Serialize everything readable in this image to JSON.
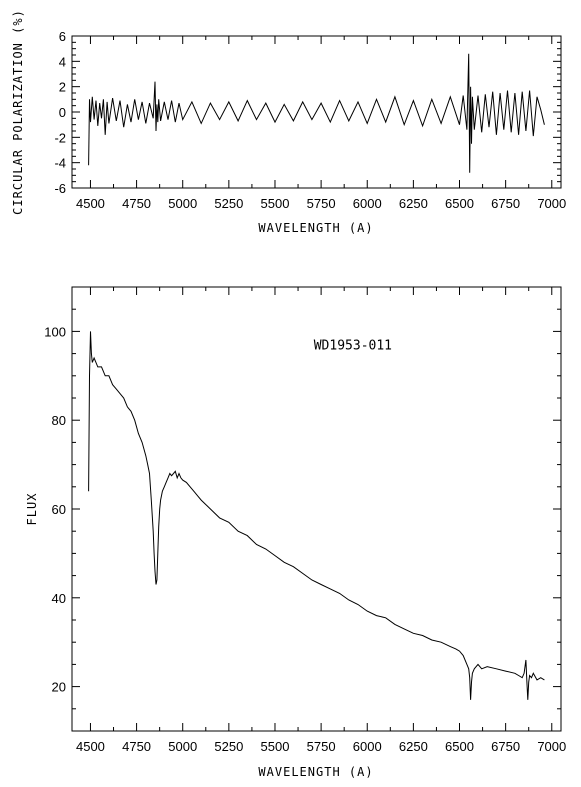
{
  "chart_data": [
    {
      "type": "line",
      "title": "",
      "xlabel": "WAVELENGTH (A)",
      "ylabel": "CIRCULAR POLARIZATION (%)",
      "xlim": [
        4400,
        7050
      ],
      "ylim": [
        -6,
        6
      ],
      "xticks": [
        4500,
        4750,
        5000,
        5250,
        5500,
        5750,
        6000,
        6250,
        6500,
        6750,
        7000
      ],
      "xtick_labels": [
        "4500",
        "4750",
        "5000",
        "5250",
        "5500",
        "5750",
        "6000",
        "6250",
        "6500",
        "6750",
        "7000"
      ],
      "yticks": [
        -6,
        -4,
        -2,
        0,
        2,
        4,
        6
      ],
      "ytick_labels": [
        "-6",
        "-4",
        "-2",
        "0",
        "2",
        "4",
        "6"
      ],
      "grid": false,
      "series": [
        {
          "x": [
            4490,
            4495,
            4500,
            4510,
            4520,
            4530,
            4540,
            4550,
            4560,
            4570,
            4580,
            4590,
            4600,
            4620,
            4640,
            4660,
            4680,
            4700,
            4720,
            4740,
            4760,
            4780,
            4800,
            4820,
            4840,
            4850,
            4855,
            4860,
            4865,
            4870,
            4880,
            4900,
            4920,
            4940,
            4960,
            4980,
            5000,
            5050,
            5100,
            5150,
            5200,
            5250,
            5300,
            5350,
            5400,
            5450,
            5500,
            5550,
            5600,
            5650,
            5700,
            5750,
            5800,
            5850,
            5900,
            5950,
            6000,
            6050,
            6100,
            6150,
            6200,
            6250,
            6300,
            6350,
            6400,
            6450,
            6500,
            6520,
            6540,
            6550,
            6555,
            6560,
            6565,
            6570,
            6580,
            6600,
            6620,
            6640,
            6660,
            6680,
            6700,
            6720,
            6740,
            6760,
            6780,
            6800,
            6820,
            6840,
            6860,
            6880,
            6900,
            6920,
            6940,
            6960
          ],
          "values": [
            -4.2,
            1.0,
            -0.8,
            1.2,
            -0.6,
            0.9,
            -1.1,
            0.7,
            -0.5,
            1.0,
            -1.8,
            0.8,
            -0.9,
            1.1,
            -0.7,
            0.9,
            -1.2,
            0.6,
            -0.8,
            1.0,
            -0.6,
            0.8,
            -0.9,
            0.7,
            -0.5,
            2.4,
            -1.5,
            0.6,
            -0.8,
            1.0,
            -0.7,
            0.8,
            -0.6,
            0.9,
            -0.8,
            0.7,
            -0.6,
            0.8,
            -0.9,
            0.7,
            -0.6,
            0.8,
            -0.7,
            0.9,
            -0.6,
            0.7,
            -0.8,
            0.6,
            -0.7,
            0.8,
            -0.6,
            0.7,
            -0.8,
            0.9,
            -0.7,
            0.8,
            -0.9,
            1.0,
            -0.8,
            1.2,
            -1.0,
            0.9,
            -1.1,
            1.0,
            -0.9,
            1.2,
            -1.0,
            1.3,
            -1.4,
            4.6,
            -4.8,
            2.0,
            -2.5,
            1.2,
            -1.4,
            1.3,
            -1.6,
            1.4,
            -1.2,
            1.6,
            -1.8,
            1.5,
            -1.4,
            1.7,
            -1.6,
            1.5,
            -1.8,
            1.6,
            -1.5,
            1.7,
            -1.9,
            1.2,
            0.2,
            -1.0
          ]
        }
      ]
    },
    {
      "type": "line",
      "title": "",
      "xlabel": "WAVELENGTH (A)",
      "ylabel": "FLUX",
      "xlim": [
        4400,
        7050
      ],
      "ylim": [
        10,
        110
      ],
      "xticks": [
        4500,
        4750,
        5000,
        5250,
        5500,
        5750,
        6000,
        6250,
        6500,
        6750,
        7000
      ],
      "xtick_labels": [
        "4500",
        "4750",
        "5000",
        "5250",
        "5500",
        "5750",
        "6000",
        "6250",
        "6500",
        "6750",
        "7000"
      ],
      "yticks": [
        20,
        40,
        60,
        80,
        100
      ],
      "ytick_labels": [
        "20",
        "40",
        "60",
        "80",
        "100"
      ],
      "grid": false,
      "annotations": [
        {
          "text": "WD1953-011",
          "x": 6550,
          "y": 97
        }
      ],
      "series": [
        {
          "x": [
            4490,
            4495,
            4500,
            4505,
            4510,
            4520,
            4540,
            4560,
            4580,
            4600,
            4620,
            4640,
            4660,
            4680,
            4700,
            4720,
            4740,
            4760,
            4780,
            4800,
            4810,
            4820,
            4830,
            4840,
            4845,
            4850,
            4855,
            4860,
            4865,
            4870,
            4875,
            4880,
            4890,
            4900,
            4910,
            4920,
            4930,
            4940,
            4950,
            4960,
            4970,
            4980,
            4990,
            5000,
            5020,
            5040,
            5060,
            5080,
            5100,
            5150,
            5200,
            5250,
            5300,
            5350,
            5400,
            5450,
            5500,
            5550,
            5600,
            5650,
            5700,
            5750,
            5800,
            5850,
            5900,
            5950,
            6000,
            6050,
            6100,
            6150,
            6200,
            6250,
            6300,
            6350,
            6400,
            6450,
            6480,
            6500,
            6520,
            6540,
            6550,
            6555,
            6560,
            6565,
            6570,
            6580,
            6600,
            6620,
            6650,
            6700,
            6750,
            6800,
            6820,
            6840,
            6850,
            6860,
            6865,
            6870,
            6875,
            6880,
            6890,
            6900,
            6920,
            6940,
            6960
          ],
          "values": [
            64,
            90,
            100,
            95,
            93,
            94,
            92,
            92,
            90,
            90,
            88,
            87,
            86,
            85,
            83,
            82,
            80,
            77,
            75,
            72,
            70,
            68,
            62,
            55,
            50,
            46,
            43,
            44,
            50,
            56,
            60,
            62,
            64,
            65,
            66,
            67,
            68,
            67.5,
            68,
            68.5,
            67,
            68,
            67,
            66.5,
            66,
            65,
            64,
            63,
            62,
            60,
            58,
            57,
            55,
            54,
            52,
            51,
            49.5,
            48,
            47,
            45.5,
            44,
            43,
            42,
            41,
            39.5,
            38.5,
            37,
            36,
            35.5,
            34,
            33,
            32,
            31.5,
            30.5,
            30,
            29,
            28.5,
            28,
            27,
            25,
            24,
            22,
            17,
            21,
            23,
            24,
            25,
            24,
            24.5,
            24,
            23.5,
            23,
            22.5,
            22,
            23,
            26,
            21,
            17,
            21,
            22.5,
            22,
            23,
            21.5,
            22,
            21.5
          ]
        }
      ]
    }
  ]
}
